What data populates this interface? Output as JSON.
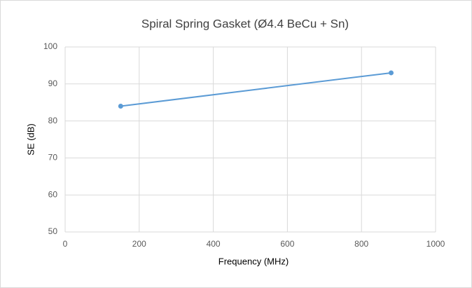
{
  "chart_data": {
    "type": "line",
    "title": "Spiral Spring Gasket (Ø4.4 BeCu + Sn)",
    "x_label": "Frequency  (MHz)",
    "y_label": "SE (dB)",
    "x": [
      150,
      880
    ],
    "series": [
      {
        "name": "SE",
        "color": "#5b9bd5",
        "values": [
          84,
          93
        ]
      }
    ],
    "xlim": [
      0,
      1000
    ],
    "xticks": [
      0,
      200,
      400,
      600,
      800,
      1000
    ],
    "ylim": [
      50,
      100
    ],
    "yticks": [
      50,
      60,
      70,
      80,
      90,
      100
    ],
    "grid": true
  }
}
